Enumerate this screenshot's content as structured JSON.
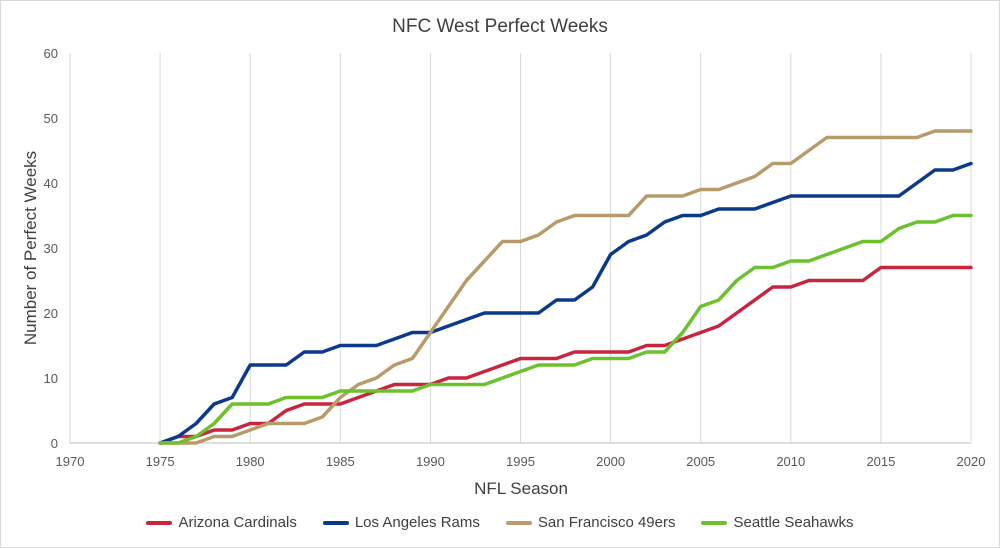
{
  "chart_data": {
    "type": "line",
    "title": "NFC West Perfect Weeks",
    "xlabel": "NFL Season",
    "ylabel": "Number of Perfect Weeks",
    "xlim": [
      1970,
      2020
    ],
    "ylim": [
      0,
      60
    ],
    "xticks": [
      1970,
      1975,
      1980,
      1985,
      1990,
      1995,
      2000,
      2005,
      2010,
      2015,
      2020
    ],
    "yticks": [
      0,
      10,
      20,
      30,
      40,
      50,
      60
    ],
    "grid": "vertical",
    "legend_position": "bottom",
    "x": [
      1975,
      1976,
      1977,
      1978,
      1979,
      1980,
      1981,
      1982,
      1983,
      1984,
      1985,
      1986,
      1987,
      1988,
      1989,
      1990,
      1991,
      1992,
      1993,
      1994,
      1995,
      1996,
      1997,
      1998,
      1999,
      2000,
      2001,
      2002,
      2003,
      2004,
      2005,
      2006,
      2007,
      2008,
      2009,
      2010,
      2011,
      2012,
      2013,
      2014,
      2015,
      2016,
      2017,
      2018,
      2019,
      2020
    ],
    "series": [
      {
        "name": "Arizona Cardinals",
        "color": "#c8253f",
        "values": [
          0,
          1,
          1,
          2,
          2,
          3,
          3,
          5,
          6,
          6,
          6,
          7,
          8,
          9,
          9,
          9,
          10,
          10,
          11,
          12,
          13,
          13,
          13,
          14,
          14,
          14,
          14,
          15,
          15,
          16,
          17,
          18,
          20,
          22,
          24,
          24,
          25,
          25,
          25,
          25,
          27,
          27,
          27,
          27,
          27,
          27
        ]
      },
      {
        "name": "Los Angeles Rams",
        "color": "#0b3a8c",
        "values": [
          0,
          1,
          3,
          6,
          7,
          12,
          12,
          12,
          14,
          14,
          15,
          15,
          15,
          16,
          17,
          17,
          18,
          19,
          20,
          20,
          20,
          20,
          22,
          22,
          24,
          29,
          31,
          32,
          34,
          35,
          35,
          36,
          36,
          36,
          37,
          38,
          38,
          38,
          38,
          38,
          38,
          38,
          40,
          42,
          42,
          43
        ]
      },
      {
        "name": "San Francisco 49ers",
        "color": "#b89b6a",
        "values": [
          0,
          0,
          0,
          1,
          1,
          2,
          3,
          3,
          3,
          4,
          7,
          9,
          10,
          12,
          13,
          17,
          21,
          25,
          28,
          31,
          31,
          32,
          34,
          35,
          35,
          35,
          35,
          38,
          38,
          38,
          39,
          39,
          40,
          41,
          43,
          43,
          45,
          47,
          47,
          47,
          47,
          47,
          47,
          48,
          48,
          48
        ]
      },
      {
        "name": "Seattle Seahawks",
        "color": "#6cc12d",
        "values": [
          0,
          0,
          1,
          3,
          6,
          6,
          6,
          7,
          7,
          7,
          8,
          8,
          8,
          8,
          8,
          9,
          9,
          9,
          9,
          10,
          11,
          12,
          12,
          12,
          13,
          13,
          13,
          14,
          14,
          17,
          21,
          22,
          25,
          27,
          27,
          28,
          28,
          29,
          30,
          31,
          31,
          33,
          34,
          34,
          35,
          35
        ]
      }
    ]
  }
}
